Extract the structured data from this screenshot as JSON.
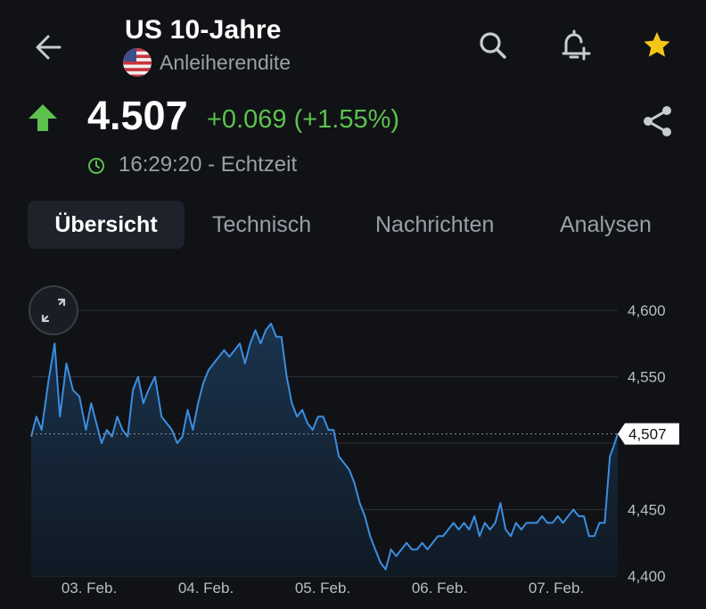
{
  "header": {
    "title": "US 10-Jahre",
    "subtitle": "Anleiherendite",
    "icons": [
      "back-arrow-icon",
      "us-flag-icon",
      "search-icon",
      "bell-plus-icon",
      "star-icon"
    ]
  },
  "quote": {
    "price": "4.507",
    "change": "+0.069 (+1.55%)",
    "time": "16:29:20 - Echtzeit",
    "colors": {
      "up": "#5cc14d",
      "star": "#f5c518",
      "line": "#3b8ee0"
    }
  },
  "tabs": [
    {
      "label": "Übersicht",
      "active": true
    },
    {
      "label": "Technisch",
      "active": false
    },
    {
      "label": "Nachrichten",
      "active": false
    },
    {
      "label": "Analysen",
      "active": false
    }
  ],
  "chart_data": {
    "type": "area",
    "ylim": [
      4.4,
      4.6
    ],
    "y_ticks": [
      "4,600",
      "4,550",
      "4,450",
      "4,400"
    ],
    "x_ticks": [
      "03. Feb.",
      "04. Feb.",
      "05. Feb.",
      "06. Feb.",
      "07. Feb."
    ],
    "last_value_label": "4,507",
    "last_value": 4.507,
    "grid": true,
    "series": [
      {
        "points": [
          [
            0.0,
            4.505
          ],
          [
            0.04,
            4.52
          ],
          [
            0.08,
            4.51
          ],
          [
            0.13,
            4.545
          ],
          [
            0.18,
            4.575
          ],
          [
            0.22,
            4.52
          ],
          [
            0.27,
            4.56
          ],
          [
            0.32,
            4.54
          ],
          [
            0.37,
            4.535
          ],
          [
            0.42,
            4.51
          ],
          [
            0.46,
            4.53
          ],
          [
            0.5,
            4.515
          ],
          [
            0.54,
            4.5
          ],
          [
            0.58,
            4.51
          ],
          [
            0.62,
            4.505
          ],
          [
            0.66,
            4.52
          ],
          [
            0.7,
            4.51
          ],
          [
            0.74,
            4.505
          ],
          [
            0.78,
            4.54
          ],
          [
            0.82,
            4.55
          ],
          [
            0.86,
            4.53
          ],
          [
            0.9,
            4.54
          ],
          [
            0.95,
            4.55
          ],
          [
            1.0,
            4.52
          ],
          [
            1.04,
            4.515
          ],
          [
            1.08,
            4.51
          ],
          [
            1.12,
            4.5
          ],
          [
            1.16,
            4.505
          ],
          [
            1.2,
            4.525
          ],
          [
            1.24,
            4.51
          ],
          [
            1.28,
            4.53
          ],
          [
            1.32,
            4.545
          ],
          [
            1.36,
            4.555
          ],
          [
            1.4,
            4.56
          ],
          [
            1.44,
            4.565
          ],
          [
            1.48,
            4.57
          ],
          [
            1.52,
            4.565
          ],
          [
            1.56,
            4.57
          ],
          [
            1.6,
            4.575
          ],
          [
            1.64,
            4.56
          ],
          [
            1.68,
            4.575
          ],
          [
            1.72,
            4.585
          ],
          [
            1.76,
            4.575
          ],
          [
            1.8,
            4.585
          ],
          [
            1.84,
            4.59
          ],
          [
            1.88,
            4.58
          ],
          [
            1.92,
            4.58
          ],
          [
            1.96,
            4.55
          ],
          [
            2.0,
            4.53
          ],
          [
            2.04,
            4.52
          ],
          [
            2.08,
            4.525
          ],
          [
            2.12,
            4.515
          ],
          [
            2.16,
            4.51
          ],
          [
            2.2,
            4.52
          ],
          [
            2.24,
            4.52
          ],
          [
            2.28,
            4.51
          ],
          [
            2.32,
            4.51
          ],
          [
            2.36,
            4.49
          ],
          [
            2.4,
            4.485
          ],
          [
            2.44,
            4.48
          ],
          [
            2.48,
            4.47
          ],
          [
            2.52,
            4.455
          ],
          [
            2.56,
            4.445
          ],
          [
            2.6,
            4.43
          ],
          [
            2.64,
            4.42
          ],
          [
            2.68,
            4.41
          ],
          [
            2.72,
            4.405
          ],
          [
            2.76,
            4.42
          ],
          [
            2.8,
            4.415
          ],
          [
            2.84,
            4.42
          ],
          [
            2.88,
            4.425
          ],
          [
            2.92,
            4.42
          ],
          [
            2.96,
            4.42
          ],
          [
            3.0,
            4.425
          ],
          [
            3.04,
            4.42
          ],
          [
            3.08,
            4.425
          ],
          [
            3.12,
            4.43
          ],
          [
            3.16,
            4.43
          ],
          [
            3.2,
            4.435
          ],
          [
            3.24,
            4.44
          ],
          [
            3.28,
            4.435
          ],
          [
            3.32,
            4.44
          ],
          [
            3.36,
            4.435
          ],
          [
            3.4,
            4.445
          ],
          [
            3.44,
            4.43
          ],
          [
            3.48,
            4.44
          ],
          [
            3.52,
            4.435
          ],
          [
            3.56,
            4.44
          ],
          [
            3.6,
            4.455
          ],
          [
            3.64,
            4.435
          ],
          [
            3.68,
            4.43
          ],
          [
            3.72,
            4.44
          ],
          [
            3.76,
            4.435
          ],
          [
            3.8,
            4.44
          ],
          [
            3.84,
            4.44
          ],
          [
            3.88,
            4.44
          ],
          [
            3.92,
            4.445
          ],
          [
            3.96,
            4.44
          ],
          [
            4.0,
            4.44
          ],
          [
            4.04,
            4.445
          ],
          [
            4.08,
            4.44
          ],
          [
            4.12,
            4.445
          ],
          [
            4.16,
            4.45
          ],
          [
            4.2,
            4.445
          ],
          [
            4.24,
            4.445
          ],
          [
            4.28,
            4.43
          ],
          [
            4.32,
            4.43
          ],
          [
            4.36,
            4.44
          ],
          [
            4.4,
            4.44
          ],
          [
            4.44,
            4.49
          ],
          [
            4.47,
            4.498
          ],
          [
            4.5,
            4.507
          ]
        ]
      }
    ]
  }
}
